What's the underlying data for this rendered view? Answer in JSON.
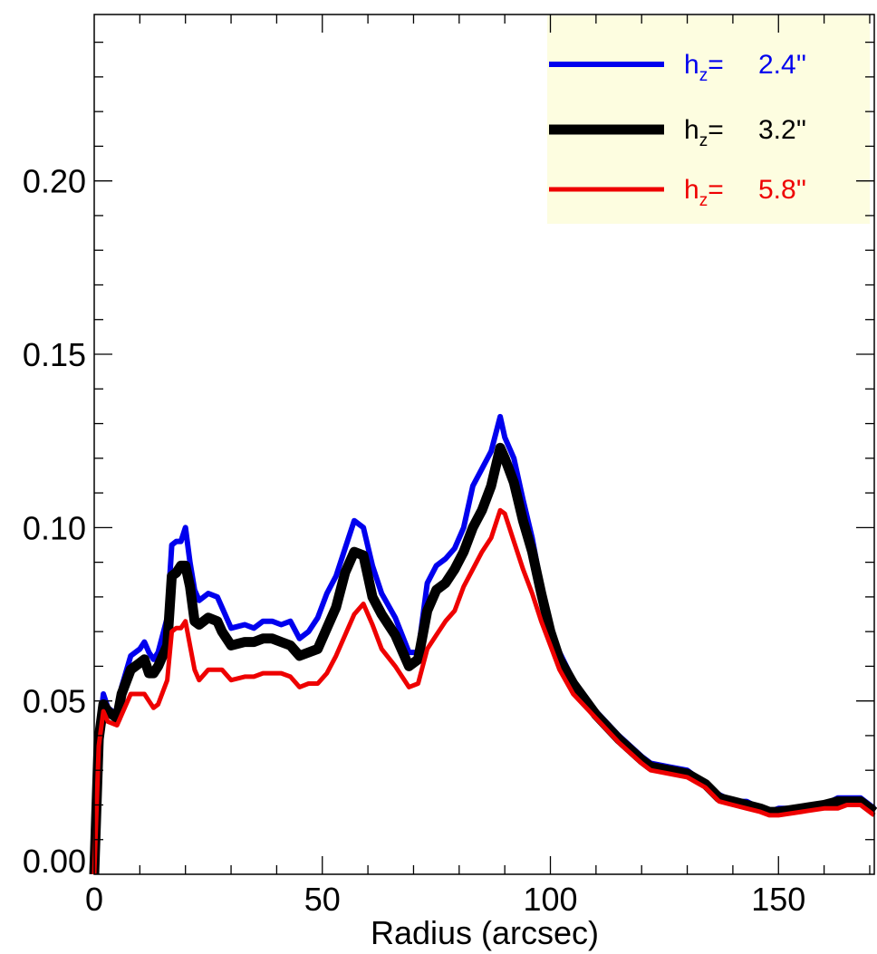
{
  "chart_data": {
    "type": "line",
    "title": "",
    "xlabel": "Radius (arcsec)",
    "ylabel": "",
    "xlim": [
      0,
      171
    ],
    "ylim": [
      0.0,
      0.248
    ],
    "x_ticks": [
      {
        "value": 0,
        "label": "0"
      },
      {
        "value": 50,
        "label": "50"
      },
      {
        "value": 100,
        "label": "100"
      },
      {
        "value": 150,
        "label": "150"
      }
    ],
    "y_ticks": [
      {
        "value": 0.0,
        "label": "0.00"
      },
      {
        "value": 0.05,
        "label": "0.05"
      },
      {
        "value": 0.1,
        "label": "0.10"
      },
      {
        "value": 0.15,
        "label": "0.15"
      },
      {
        "value": 0.2,
        "label": "0.20"
      }
    ],
    "grid": false,
    "legend": {
      "placement": "top-right",
      "background": "#fdfde0",
      "entries": [
        {
          "prefix": "h",
          "subscript": "z",
          "suffix": "=",
          "value": "2.4''",
          "color": "#0000ee"
        },
        {
          "prefix": "h",
          "subscript": "z",
          "suffix": "=",
          "value": "3.2''",
          "color": "#000000"
        },
        {
          "prefix": "h",
          "subscript": "z",
          "suffix": "=",
          "value": "5.8''",
          "color": "#ee0000"
        }
      ]
    },
    "series": [
      {
        "legend_index": 0,
        "color": "#0000ee",
        "width": 6,
        "x": [
          0,
          1,
          2,
          3,
          5,
          6,
          8,
          10,
          11,
          12,
          13,
          14,
          16,
          17,
          18,
          19,
          20,
          21,
          22,
          23,
          25,
          27,
          28,
          30,
          33,
          35,
          37,
          39,
          41,
          43,
          45,
          47,
          49,
          51,
          53,
          55,
          57,
          59,
          61,
          63,
          66,
          69,
          71,
          73,
          75,
          77,
          79,
          81,
          83,
          85,
          87,
          89,
          90,
          92,
          94,
          96,
          98,
          100,
          102,
          105,
          110,
          115,
          120,
          122,
          126,
          130,
          134,
          137,
          140,
          143,
          146,
          148,
          150,
          155,
          160,
          163,
          165,
          168,
          171
        ],
        "y": [
          0.0,
          0.04,
          0.052,
          0.048,
          0.046,
          0.054,
          0.063,
          0.065,
          0.067,
          0.064,
          0.062,
          0.064,
          0.074,
          0.095,
          0.096,
          0.096,
          0.1,
          0.09,
          0.082,
          0.079,
          0.081,
          0.08,
          0.077,
          0.071,
          0.072,
          0.071,
          0.073,
          0.073,
          0.072,
          0.073,
          0.068,
          0.07,
          0.074,
          0.081,
          0.086,
          0.094,
          0.102,
          0.1,
          0.089,
          0.081,
          0.074,
          0.064,
          0.064,
          0.084,
          0.089,
          0.091,
          0.094,
          0.1,
          0.112,
          0.117,
          0.122,
          0.132,
          0.126,
          0.12,
          0.108,
          0.097,
          0.083,
          0.071,
          0.064,
          0.056,
          0.047,
          0.04,
          0.034,
          0.032,
          0.031,
          0.03,
          0.026,
          0.023,
          0.021,
          0.021,
          0.019,
          0.018,
          0.019,
          0.019,
          0.02,
          0.022,
          0.022,
          0.022,
          0.019
        ]
      },
      {
        "legend_index": 1,
        "color": "#000000",
        "width": 11,
        "x": [
          0,
          1,
          2,
          3,
          5,
          6,
          8,
          10,
          11,
          12,
          13,
          14,
          16,
          17,
          18,
          19,
          20,
          21,
          22,
          23,
          25,
          27,
          28,
          30,
          33,
          35,
          37,
          39,
          41,
          43,
          45,
          47,
          49,
          51,
          53,
          55,
          57,
          59,
          61,
          63,
          66,
          69,
          71,
          73,
          75,
          77,
          79,
          81,
          83,
          85,
          87,
          89,
          90,
          92,
          94,
          96,
          98,
          100,
          102,
          105,
          110,
          115,
          120,
          122,
          126,
          130,
          134,
          137,
          140,
          143,
          146,
          148,
          150,
          155,
          160,
          163,
          165,
          168,
          171
        ],
        "y": [
          0.0,
          0.039,
          0.049,
          0.047,
          0.045,
          0.052,
          0.059,
          0.061,
          0.062,
          0.058,
          0.058,
          0.06,
          0.066,
          0.086,
          0.087,
          0.089,
          0.089,
          0.083,
          0.073,
          0.072,
          0.074,
          0.073,
          0.07,
          0.066,
          0.067,
          0.067,
          0.068,
          0.068,
          0.067,
          0.066,
          0.063,
          0.064,
          0.065,
          0.071,
          0.077,
          0.087,
          0.093,
          0.092,
          0.08,
          0.075,
          0.069,
          0.06,
          0.062,
          0.076,
          0.082,
          0.084,
          0.088,
          0.093,
          0.1,
          0.105,
          0.112,
          0.123,
          0.12,
          0.113,
          0.102,
          0.093,
          0.081,
          0.07,
          0.062,
          0.055,
          0.046,
          0.039,
          0.033,
          0.031,
          0.03,
          0.029,
          0.026,
          0.022,
          0.021,
          0.02,
          0.019,
          0.018,
          0.018,
          0.019,
          0.02,
          0.021,
          0.021,
          0.021,
          0.018
        ]
      },
      {
        "legend_index": 2,
        "color": "#ee0000",
        "width": 5,
        "x": [
          0,
          1,
          2,
          3,
          5,
          6,
          8,
          10,
          11,
          12,
          13,
          14,
          16,
          17,
          18,
          19,
          20,
          21,
          22,
          23,
          25,
          27,
          28,
          30,
          33,
          35,
          37,
          39,
          41,
          43,
          45,
          47,
          49,
          51,
          53,
          55,
          57,
          59,
          61,
          63,
          66,
          69,
          71,
          73,
          75,
          77,
          79,
          81,
          83,
          85,
          87,
          89,
          90,
          92,
          94,
          96,
          98,
          100,
          102,
          105,
          110,
          115,
          120,
          122,
          126,
          130,
          134,
          137,
          140,
          143,
          146,
          148,
          150,
          155,
          160,
          163,
          165,
          168,
          171
        ],
        "y": [
          0.0,
          0.037,
          0.047,
          0.044,
          0.043,
          0.046,
          0.052,
          0.052,
          0.052,
          0.05,
          0.048,
          0.049,
          0.056,
          0.07,
          0.071,
          0.071,
          0.073,
          0.066,
          0.059,
          0.056,
          0.059,
          0.059,
          0.059,
          0.056,
          0.057,
          0.057,
          0.058,
          0.058,
          0.058,
          0.057,
          0.054,
          0.055,
          0.055,
          0.058,
          0.063,
          0.069,
          0.075,
          0.078,
          0.072,
          0.065,
          0.06,
          0.054,
          0.055,
          0.065,
          0.069,
          0.073,
          0.076,
          0.083,
          0.088,
          0.093,
          0.097,
          0.105,
          0.104,
          0.096,
          0.088,
          0.081,
          0.073,
          0.066,
          0.059,
          0.052,
          0.045,
          0.038,
          0.032,
          0.03,
          0.029,
          0.028,
          0.025,
          0.021,
          0.02,
          0.019,
          0.018,
          0.017,
          0.017,
          0.018,
          0.019,
          0.019,
          0.02,
          0.02,
          0.017
        ]
      }
    ]
  }
}
